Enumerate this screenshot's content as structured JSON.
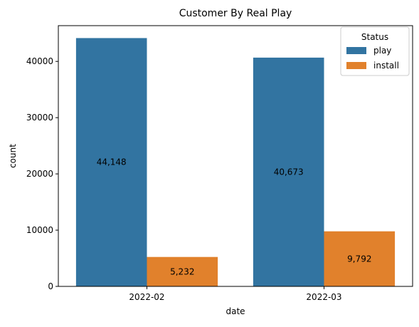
{
  "chart_data": {
    "type": "bar",
    "title": "Customer By Real Play",
    "xlabel": "date",
    "ylabel": "count",
    "categories": [
      "2022-02",
      "2022-03"
    ],
    "series": [
      {
        "name": "play",
        "color": "#3274a1",
        "values": [
          44148,
          40673
        ],
        "labels": [
          "44,148",
          "40,673"
        ]
      },
      {
        "name": "install",
        "color": "#e1812c",
        "values": [
          5232,
          9792
        ],
        "labels": [
          "5,232",
          "9,792"
        ]
      }
    ],
    "ylim": [
      0,
      46357
    ],
    "yticks": [
      0,
      10000,
      20000,
      30000,
      40000
    ],
    "ytick_labels": [
      "0",
      "10000",
      "20000",
      "30000",
      "40000"
    ],
    "grid": false,
    "legend": {
      "title": "Status",
      "placement": "top-right"
    }
  }
}
